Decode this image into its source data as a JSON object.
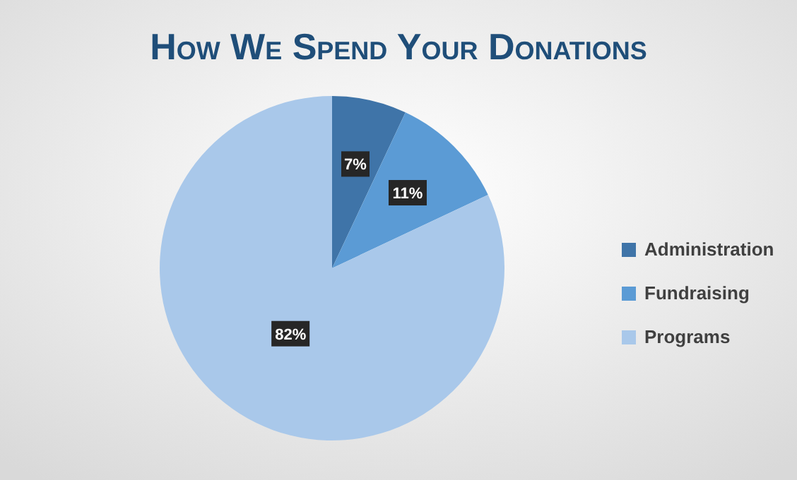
{
  "chart_data": {
    "type": "pie",
    "title": "How We Spend Your Donations",
    "categories": [
      "Administration",
      "Fundraising",
      "Programs"
    ],
    "values": [
      7,
      11,
      82
    ],
    "colors": [
      "#3f74a8",
      "#5b9bd5",
      "#a9c8ea"
    ],
    "value_labels": [
      "7%",
      "11%",
      "82%"
    ],
    "legend": "right"
  }
}
